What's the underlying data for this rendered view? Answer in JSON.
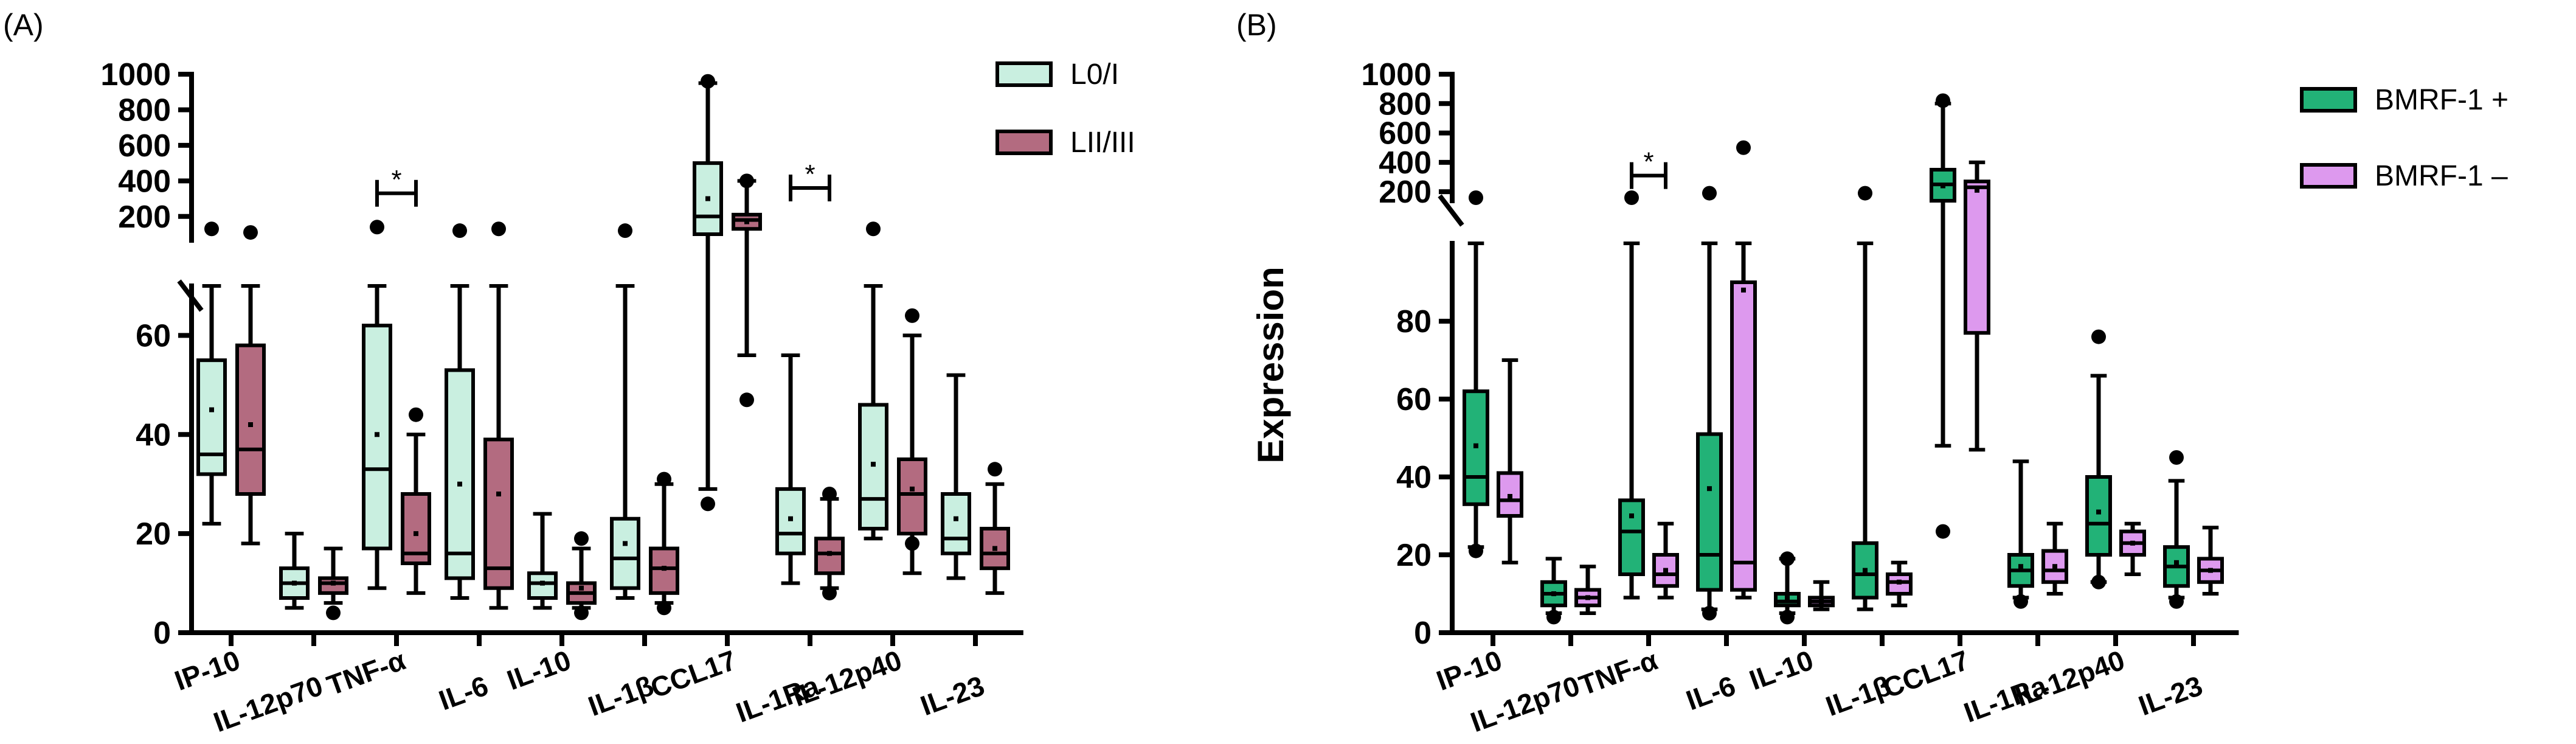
{
  "chart_data": [
    {
      "type": "boxplot",
      "panel_label": "(A)",
      "ylabel": "",
      "y_axis": {
        "lower_range": [
          0,
          70
        ],
        "lower_ticks": [
          0,
          20,
          40,
          60
        ],
        "upper_range": [
          100,
          1000
        ],
        "upper_ticks": [
          200,
          400,
          600,
          800,
          1000
        ],
        "broken": true
      },
      "categories": [
        "IP-10",
        "IL-12p70",
        "TNF-α",
        "IL-6",
        "IL-10",
        "IL-1β",
        "CCL17",
        "IL-1Ra",
        "IL-12p40",
        "IL-23"
      ],
      "legend": {
        "position": "top-right",
        "entries": [
          "L0/I",
          "LII/III"
        ]
      },
      "colors": {
        "L0/I": "#c9efe0",
        "LII/III": "#b36b80"
      },
      "series": [
        {
          "name": "L0/I",
          "boxes": [
            {
              "min": 22,
              "q1": 32,
              "median": 36,
              "q3": 55,
              "max": 70,
              "mean": 45,
              "outliers": [
                130
              ]
            },
            {
              "min": 5,
              "q1": 7,
              "median": 10,
              "q3": 13,
              "max": 20,
              "mean": 10,
              "outliers": []
            },
            {
              "min": 9,
              "q1": 17,
              "median": 33,
              "q3": 62,
              "max": 70,
              "mean": 40,
              "outliers": [
                140
              ]
            },
            {
              "min": 7,
              "q1": 11,
              "median": 16,
              "q3": 53,
              "max": 70,
              "mean": 30,
              "outliers": [
                120
              ]
            },
            {
              "min": 5,
              "q1": 7,
              "median": 10,
              "q3": 12,
              "max": 24,
              "mean": 10,
              "outliers": []
            },
            {
              "min": 7,
              "q1": 9,
              "median": 15,
              "q3": 23,
              "max": 70,
              "mean": 18,
              "outliers": [
                120
              ]
            },
            {
              "min": 29,
              "q1": 100,
              "median": 200,
              "q3": 500,
              "max": 950,
              "mean": 300,
              "outliers": [
                26,
                960
              ]
            },
            {
              "min": 10,
              "q1": 16,
              "median": 20,
              "q3": 29,
              "max": 56,
              "mean": 23,
              "outliers": []
            },
            {
              "min": 19,
              "q1": 21,
              "median": 27,
              "q3": 46,
              "max": 70,
              "mean": 34,
              "outliers": [
                130
              ]
            },
            {
              "min": 11,
              "q1": 16,
              "median": 19,
              "q3": 28,
              "max": 52,
              "mean": 23,
              "outliers": []
            }
          ]
        },
        {
          "name": "LII/III",
          "boxes": [
            {
              "min": 18,
              "q1": 28,
              "median": 37,
              "q3": 58,
              "max": 70,
              "mean": 42,
              "outliers": [
                110
              ]
            },
            {
              "min": 6,
              "q1": 8,
              "median": 10,
              "q3": 11,
              "max": 17,
              "mean": 10,
              "outliers": [
                4
              ]
            },
            {
              "min": 8,
              "q1": 14,
              "median": 16,
              "q3": 28,
              "max": 40,
              "mean": 20,
              "outliers": [
                44
              ]
            },
            {
              "min": 5,
              "q1": 9,
              "median": 13,
              "q3": 39,
              "max": 70,
              "mean": 28,
              "outliers": [
                130
              ]
            },
            {
              "min": 5,
              "q1": 6,
              "median": 8,
              "q3": 10,
              "max": 17,
              "mean": 9,
              "outliers": [
                4,
                19
              ]
            },
            {
              "min": 6,
              "q1": 8,
              "median": 13,
              "q3": 17,
              "max": 30,
              "mean": 13,
              "outliers": [
                5,
                31
              ]
            },
            {
              "min": 56,
              "q1": 130,
              "median": 180,
              "q3": 210,
              "max": 400,
              "mean": 170,
              "outliers": [
                47,
                400
              ]
            },
            {
              "min": 9,
              "q1": 12,
              "median": 16,
              "q3": 19,
              "max": 27,
              "mean": 16,
              "outliers": [
                8,
                28
              ]
            },
            {
              "min": 12,
              "q1": 20,
              "median": 28,
              "q3": 35,
              "max": 60,
              "mean": 29,
              "outliers": [
                18,
                64
              ]
            },
            {
              "min": 8,
              "q1": 13,
              "median": 16,
              "q3": 21,
              "max": 30,
              "mean": 17,
              "outliers": [
                33
              ]
            }
          ]
        }
      ],
      "annotations": [
        {
          "text": "*",
          "category": "TNF-α"
        },
        {
          "text": "*",
          "category": "IL-1Ra"
        }
      ]
    },
    {
      "type": "boxplot",
      "panel_label": "(B)",
      "ylabel": "Expression",
      "y_axis": {
        "lower_range": [
          0,
          100
        ],
        "lower_ticks": [
          0,
          20,
          40,
          60,
          80
        ],
        "upper_range": [
          180,
          1000
        ],
        "upper_ticks": [
          200,
          400,
          600,
          800,
          1000
        ],
        "broken": true
      },
      "categories": [
        "IP-10",
        "IL-12p70",
        "TNF-α",
        "IL-6",
        "IL-10",
        "IL-1β",
        "CCL17",
        "IL-1Ra",
        "IL-12p40",
        "IL-23"
      ],
      "legend": {
        "position": "top-right",
        "entries": [
          "BMRF-1 +",
          "BMRF-1 –"
        ]
      },
      "colors": {
        "BMRF-1 +": "#22b277",
        "BMRF-1 –": "#dd99ee"
      },
      "series": [
        {
          "name": "BMRF-1 +",
          "boxes": [
            {
              "min": 22,
              "q1": 33,
              "median": 40,
              "q3": 62,
              "max": 100,
              "mean": 48,
              "outliers": [
                175,
                21
              ]
            },
            {
              "min": 5,
              "q1": 7,
              "median": 10,
              "q3": 13,
              "max": 19,
              "mean": 10,
              "outliers": [
                4
              ]
            },
            {
              "min": 9,
              "q1": 15,
              "median": 26,
              "q3": 34,
              "max": 100,
              "mean": 30,
              "outliers": [
                175
              ]
            },
            {
              "min": 6,
              "q1": 11,
              "median": 20,
              "q3": 51,
              "max": 100,
              "mean": 37,
              "outliers": [
                190,
                5
              ]
            },
            {
              "min": 5,
              "q1": 7,
              "median": 8,
              "q3": 10,
              "max": 19,
              "mean": 9,
              "outliers": [
                4,
                19
              ]
            },
            {
              "min": 6,
              "q1": 9,
              "median": 15,
              "q3": 23,
              "max": 100,
              "mean": 16,
              "outliers": [
                190
              ]
            },
            {
              "min": 48,
              "q1": 170,
              "median": 250,
              "q3": 350,
              "max": 800,
              "mean": 240,
              "outliers": [
                26,
                820
              ]
            },
            {
              "min": 9,
              "q1": 12,
              "median": 16,
              "q3": 20,
              "max": 44,
              "mean": 17,
              "outliers": [
                8
              ]
            },
            {
              "min": 13,
              "q1": 20,
              "median": 28,
              "q3": 40,
              "max": 66,
              "mean": 31,
              "outliers": [
                13,
                76
              ]
            },
            {
              "min": 9,
              "q1": 12,
              "median": 17,
              "q3": 22,
              "max": 39,
              "mean": 18,
              "outliers": [
                8,
                45
              ]
            }
          ]
        },
        {
          "name": "BMRF-1 –",
          "boxes": [
            {
              "min": 18,
              "q1": 30,
              "median": 34,
              "q3": 41,
              "max": 70,
              "mean": 35,
              "outliers": []
            },
            {
              "min": 5,
              "q1": 7,
              "median": 9,
              "q3": 11,
              "max": 17,
              "mean": 9,
              "outliers": []
            },
            {
              "min": 9,
              "q1": 12,
              "median": 15,
              "q3": 20,
              "max": 28,
              "mean": 16,
              "outliers": []
            },
            {
              "min": 9,
              "q1": 11,
              "median": 18,
              "q3": 90,
              "max": 100,
              "mean": 88,
              "outliers": [
                500
              ]
            },
            {
              "min": 6,
              "q1": 7,
              "median": 8,
              "q3": 9,
              "max": 13,
              "mean": 8,
              "outliers": []
            },
            {
              "min": 7,
              "q1": 10,
              "median": 13,
              "q3": 15,
              "max": 18,
              "mean": 13,
              "outliers": []
            },
            {
              "min": 47,
              "q1": 77,
              "median": 230,
              "q3": 270,
              "max": 400,
              "mean": 210,
              "outliers": []
            },
            {
              "min": 10,
              "q1": 13,
              "median": 16,
              "q3": 21,
              "max": 28,
              "mean": 17,
              "outliers": []
            },
            {
              "min": 15,
              "q1": 20,
              "median": 23,
              "q3": 26,
              "max": 28,
              "mean": 23,
              "outliers": []
            },
            {
              "min": 10,
              "q1": 13,
              "median": 16,
              "q3": 19,
              "max": 27,
              "mean": 16,
              "outliers": []
            }
          ]
        }
      ],
      "annotations": [
        {
          "text": "*",
          "category": "TNF-α"
        }
      ]
    }
  ]
}
